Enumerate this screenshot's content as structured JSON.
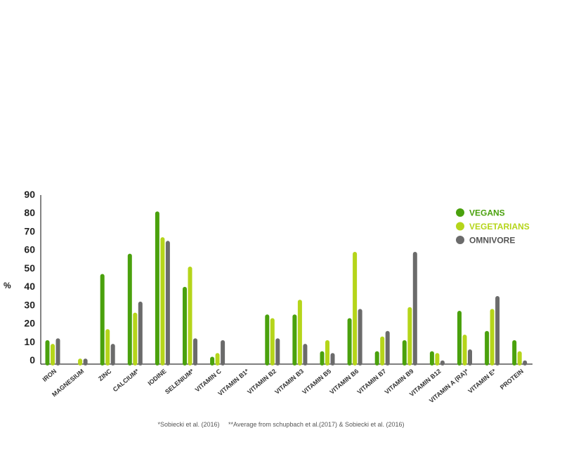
{
  "chart_data": {
    "type": "bar",
    "title": "",
    "xlabel": "",
    "ylabel": "%",
    "ylim": [
      0,
      90
    ],
    "yticks": [
      0,
      10,
      20,
      30,
      40,
      50,
      60,
      70,
      80,
      90
    ],
    "grid": false,
    "legend_position": "top-right",
    "categories": [
      "IRON",
      "MAGNESIUM",
      "ZINC",
      "CALCIUM*",
      "IODINE",
      "SELENIUM*",
      "VITAMIN C",
      "VITAMIN B1*",
      "VITAMIN B2",
      "VITAMIN B3",
      "VITAMIN B5",
      "VITAMIN B6",
      "VITAMIN B7",
      "VITAMIN B9",
      "VITAMIN B12",
      "VITAMIN A (RA)*",
      "VITAMIN E*",
      "PROTEIN"
    ],
    "series": [
      {
        "name": "VEGANS",
        "color": "#4aa10d",
        "values": [
          13,
          0,
          49,
          60,
          83,
          42,
          4,
          0,
          27,
          27,
          7,
          25,
          7,
          13,
          7,
          29,
          18,
          13
        ]
      },
      {
        "name": "VEGETARIANS",
        "color": "#b5d51a",
        "values": [
          11,
          3,
          19,
          28,
          69,
          53,
          6,
          0,
          25,
          35,
          13,
          61,
          15,
          31,
          6,
          16,
          30,
          7
        ]
      },
      {
        "name": "OMNIVORE",
        "color": "#6b6b6b",
        "values": [
          14,
          3,
          11,
          34,
          67,
          14,
          13,
          0,
          14,
          11,
          6,
          30,
          18,
          61,
          2,
          8,
          37,
          2
        ]
      }
    ]
  },
  "footnote": "*Sobiecki et al. (2016)     **Average from schupbach et al.(2017) & Sobiecki et al. (2016)"
}
